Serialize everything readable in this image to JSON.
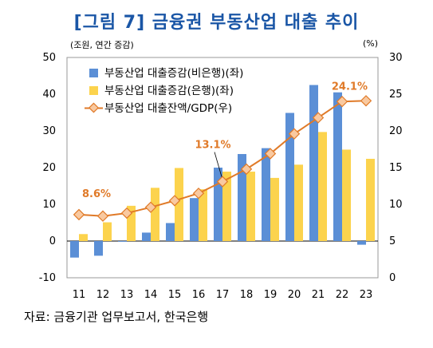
{
  "title": "[그림 7] 금융권 부동산업 대출 추이",
  "unit_left": "(조원, 연간 증감)",
  "unit_right": "(%)",
  "source": "자료: 금융기관 업무보고서, 한국은행",
  "chart_data": {
    "type": "bar",
    "title": "[그림 7] 금융권 부동산업 대출 추이",
    "categories": [
      "11",
      "12",
      "13",
      "14",
      "15",
      "16",
      "17",
      "18",
      "19",
      "20",
      "21",
      "22",
      "23"
    ],
    "ylim": [
      -10,
      50
    ],
    "yticks": [
      -10,
      0,
      10,
      20,
      30,
      40,
      50
    ],
    "y2lim": [
      0,
      30
    ],
    "y2ticks": [
      0,
      5,
      10,
      15,
      20,
      25,
      30
    ],
    "legend_position": "top-left",
    "series": [
      {
        "name": "부동산업 대출증감(비은행)(좌)",
        "type": "bar",
        "axis": "left",
        "color": "#5b8fd6",
        "values": [
          -4.5,
          -4.0,
          -0.2,
          2.3,
          4.9,
          11.7,
          20.0,
          23.7,
          25.3,
          34.9,
          42.5,
          40.5,
          -1.0
        ]
      },
      {
        "name": "부동산업 대출증감(은행)(좌)",
        "type": "bar",
        "axis": "left",
        "color": "#fcd34d",
        "values": [
          1.9,
          5.1,
          9.6,
          14.5,
          19.9,
          14.1,
          18.9,
          18.9,
          17.2,
          20.8,
          29.7,
          24.9,
          22.4
        ]
      },
      {
        "name": "부동산업 대출잔액/GDP(우)",
        "type": "line",
        "axis": "right",
        "color": "#e07a28",
        "marker_fill": "#f9c9a0",
        "values": [
          8.6,
          8.4,
          8.8,
          9.6,
          10.5,
          11.5,
          13.1,
          14.8,
          16.9,
          19.6,
          21.8,
          24.0,
          24.1
        ]
      }
    ],
    "annotations": [
      {
        "label": "8.6%",
        "category": "11"
      },
      {
        "label": "13.1%",
        "category": "17"
      },
      {
        "label": "24.1%",
        "category": "23"
      }
    ]
  }
}
